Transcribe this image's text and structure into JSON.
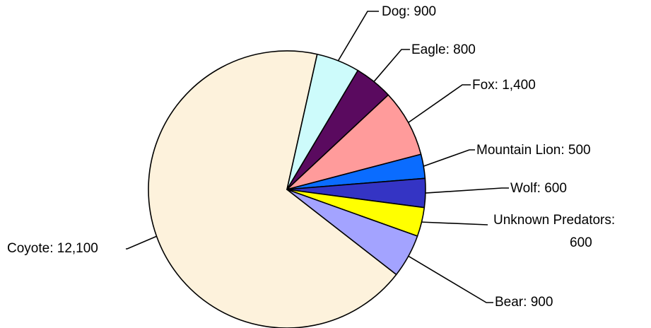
{
  "chart_data": {
    "type": "pie",
    "title": "",
    "series": [
      {
        "values": [
          12100,
          900,
          800,
          1400,
          500,
          600,
          600,
          900
        ]
      }
    ],
    "slices": [
      {
        "label": "Coyote",
        "value": 12100,
        "display": "12,100",
        "color": "#fdf2dc"
      },
      {
        "label": "Dog",
        "value": 900,
        "display": "900",
        "color": "#cdfbfb"
      },
      {
        "label": "Eagle",
        "value": 800,
        "display": "800",
        "color": "#5a0a5f"
      },
      {
        "label": "Fox",
        "value": 1400,
        "display": "1,400",
        "color": "#ff9b9b"
      },
      {
        "label": "Mountain Lion",
        "value": 500,
        "display": "500",
        "color": "#0a6cff"
      },
      {
        "label": "Wolf",
        "value": 600,
        "display": "600",
        "color": "#3434c4"
      },
      {
        "label": "Unknown Predators",
        "value": 600,
        "display": "600",
        "color": "#ffff00"
      },
      {
        "label": "Bear",
        "value": 900,
        "display": "900",
        "color": "#a3a3ff"
      }
    ],
    "legend": "none",
    "labels_shown": "category-and-value"
  }
}
